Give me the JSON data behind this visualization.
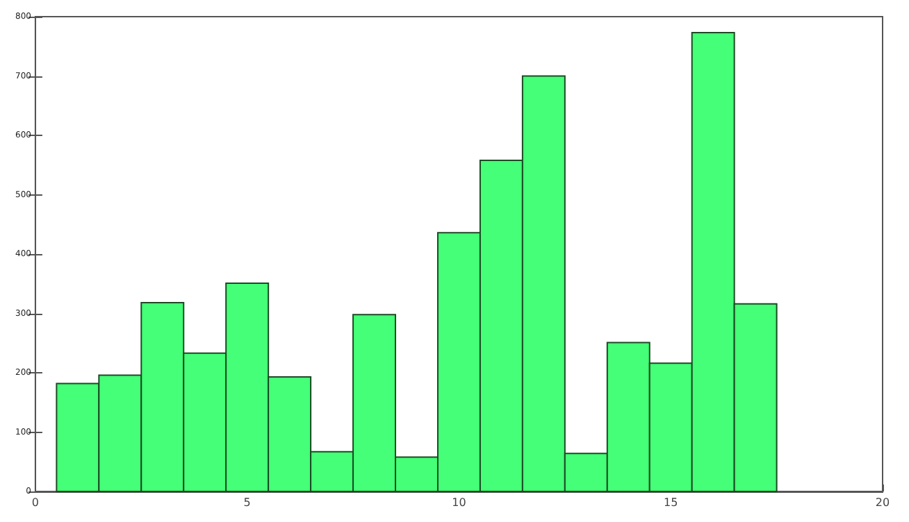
{
  "chart_data": {
    "type": "histogram",
    "bins": [
      0.5,
      1.5,
      2.5,
      3.5,
      4.5,
      5.5,
      6.5,
      7.5,
      8.5,
      9.5,
      10.5,
      11.5,
      12.5,
      13.5,
      14.5,
      15.5,
      16.5,
      17.5
    ],
    "values": [
      182,
      196,
      318,
      233,
      351,
      193,
      67,
      298,
      58,
      436,
      558,
      700,
      64,
      251,
      216,
      773,
      316
    ],
    "color": "#44ff77",
    "xlim": [
      0,
      20
    ],
    "xticks": [
      0,
      5,
      10,
      15,
      20
    ],
    "ylim": [
      0,
      800
    ],
    "yticks": [
      0,
      100,
      200,
      300,
      400,
      500,
      600,
      700,
      800
    ],
    "grid": false
  }
}
